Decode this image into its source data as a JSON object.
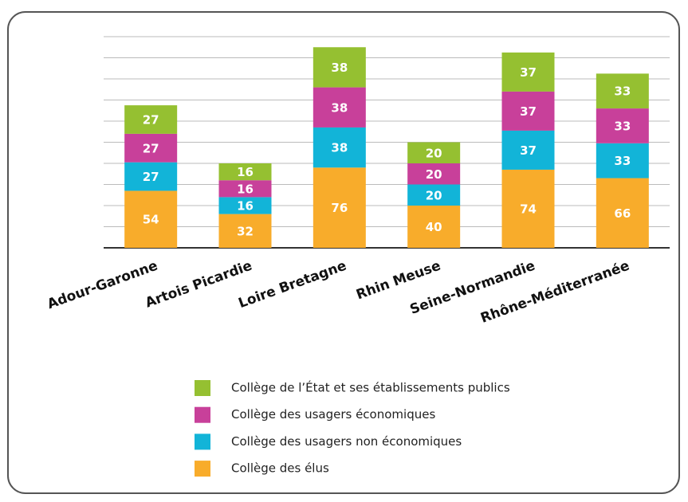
{
  "chart_data": {
    "type": "stacked_bar",
    "categories": [
      "Adour-Garonne",
      "Artois Picardie",
      "Loire Bretagne",
      "Rhin Meuse",
      "Seine-Normandie",
      "Rhône-Méditerranée"
    ],
    "series": [
      {
        "name": "Collège des élus",
        "color": "#f8ac2b",
        "values": [
          54,
          32,
          76,
          40,
          74,
          66
        ]
      },
      {
        "name": "Collège des usagers non économiques",
        "color": "#12b4d8",
        "values": [
          27,
          16,
          38,
          20,
          37,
          33
        ]
      },
      {
        "name": "Collège des usagers économiques",
        "color": "#c8409a",
        "values": [
          27,
          16,
          38,
          20,
          37,
          33
        ]
      },
      {
        "name": "Collège de l’État et ses établissements publics",
        "color": "#95c031",
        "values": [
          27,
          16,
          38,
          20,
          37,
          33
        ]
      }
    ],
    "ylim": [
      0,
      200
    ],
    "yticks": [
      0,
      20,
      40,
      60,
      80,
      100,
      120,
      140,
      160,
      180,
      200
    ],
    "grid": true
  }
}
